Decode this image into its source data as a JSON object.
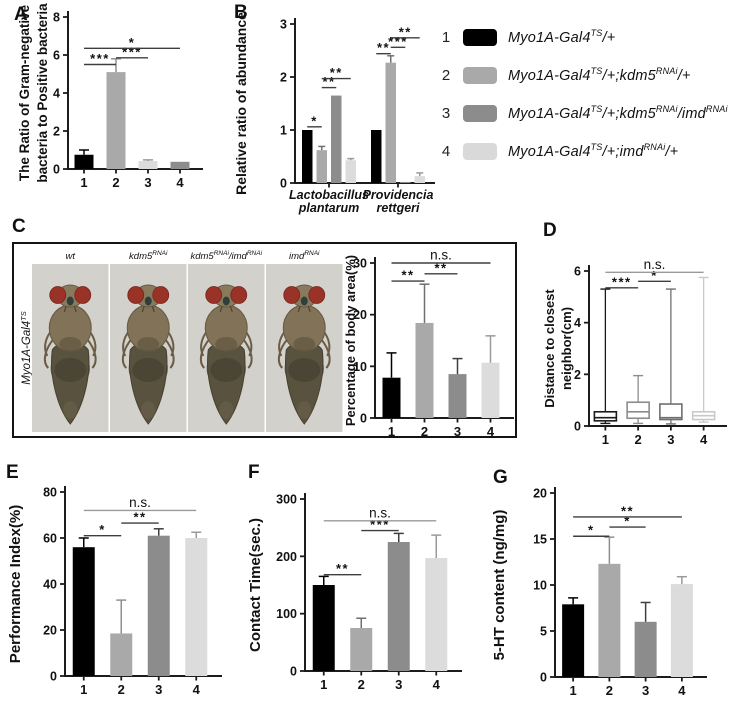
{
  "figure": {
    "background": "#ffffff",
    "panel_letters": {
      "A": "A",
      "B": "B",
      "C": "C",
      "D": "D",
      "E": "E",
      "F": "F",
      "G": "G"
    }
  },
  "legend": {
    "items": [
      {
        "num": "1",
        "color": "#000000",
        "label": "Myo1A-Gal4^{TS}/+"
      },
      {
        "num": "2",
        "color": "#a9a9a9",
        "label": "Myo1A-Gal4^{TS}/+;kdm5^{RNAi}/+"
      },
      {
        "num": "3",
        "color": "#8c8c8c",
        "label": "Myo1A-Gal4^{TS}/+;kdm5^{RNAi}/imd^{RNAi}"
      },
      {
        "num": "4",
        "color": "#d9d9d9",
        "label": "Myo1A-Gal4^{TS}/+;imd^{RNAi}/+"
      }
    ]
  },
  "panel_c": {
    "side_label": "Myo1A-Gal4^{TS}",
    "fly_labels": [
      "wt",
      "kdm5^{RNAi}",
      "kdm5^{RNAi}/imd^{RNAi}",
      "imd^{RNAi}"
    ],
    "photo_bg": "#d3d1cc",
    "fly_colors": {
      "body": "#817258",
      "abdomen": "#59523f",
      "eye": "#993227",
      "head": "#897a5e"
    }
  },
  "chart_data": [
    {
      "panel": "A",
      "type": "bar",
      "ylabel": [
        "The Ratio of Gram-negative",
        "bacteria to Positive bacteria"
      ],
      "ylim": [
        0,
        8
      ],
      "yticks": [
        0,
        2,
        4,
        6,
        8
      ],
      "categories": [
        "1",
        "2",
        "3",
        "4"
      ],
      "values": [
        0.75,
        5.1,
        0.42,
        0.38
      ],
      "errors": [
        0.25,
        0.7,
        0.06,
        0
      ],
      "colors": [
        "#000000",
        "#a9a9a9",
        "#dcdcdc",
        "#8c8c8c"
      ],
      "err_colors": [
        "#000000",
        "#8f8f8f",
        "#9a9a9a",
        "#8c8c8c"
      ],
      "sig": [
        {
          "a": 0,
          "b": 1,
          "y": 5.5,
          "label": "***"
        },
        {
          "a": 1,
          "b": 2,
          "y": 5.85,
          "label": "***"
        },
        {
          "a": 0,
          "b": 3,
          "y": 6.35,
          "label": "*"
        }
      ]
    },
    {
      "panel": "B",
      "type": "grouped_bar",
      "ylabel": [
        "Relative ratio of abundance"
      ],
      "ylim": [
        0,
        3
      ],
      "yticks": [
        0,
        1,
        2,
        3
      ],
      "group_labels": [
        [
          "Lactobacillus",
          "plantarum"
        ],
        [
          "Providencia",
          "rettgeri"
        ]
      ],
      "series_labels": [
        "1",
        "2",
        "3",
        "4"
      ],
      "values": [
        [
          1.0,
          0.62,
          1.65,
          0.43
        ],
        [
          1.0,
          2.27,
          0.02,
          0.13
        ]
      ],
      "errors": [
        [
          0,
          0.07,
          0,
          0.03
        ],
        [
          0,
          0.13,
          0,
          0.06
        ]
      ],
      "colors": [
        "#000000",
        "#a9a9a9",
        "#8c8c8c",
        "#dcdcdc"
      ],
      "err_colors": [
        "#000000",
        "#6f6f6f",
        "#6f6f6f",
        "#9a9a9a"
      ],
      "sig": [
        {
          "g": 0,
          "a": 0,
          "b": 1,
          "y": 1.06,
          "label": "*"
        },
        {
          "g": 0,
          "a": 1,
          "b": 2,
          "y": 1.8,
          "label": "**"
        },
        {
          "g": 0,
          "a": 1,
          "b": 3,
          "y": 1.97,
          "label": "**"
        },
        {
          "g": 1,
          "a": 0,
          "b": 1,
          "y": 2.44,
          "label": "**"
        },
        {
          "g": 1,
          "a": 1,
          "b": 2,
          "y": 2.56,
          "label": "***"
        },
        {
          "g": 1,
          "a": 1,
          "b": 3,
          "y": 2.74,
          "label": "**"
        }
      ]
    },
    {
      "panel": "C",
      "type": "bar",
      "ylabel": [
        "Percentage of body area(%)"
      ],
      "ylim": [
        0,
        30
      ],
      "yticks": [
        0,
        10,
        20,
        30
      ],
      "categories": [
        "1",
        "2",
        "3",
        "4"
      ],
      "values": [
        7.8,
        18.4,
        8.5,
        10.7
      ],
      "errors": [
        4.8,
        7.5,
        3.0,
        5.2
      ],
      "colors": [
        "#000000",
        "#a9a9a9",
        "#8c8c8c",
        "#dcdcdc"
      ],
      "err_colors": [
        "#000000",
        "#6f6f6f",
        "#3f3f3f",
        "#9a9a9a"
      ],
      "sig": [
        {
          "a": 0,
          "b": 1,
          "y": 26.5,
          "label": "**"
        },
        {
          "a": 1,
          "b": 2,
          "y": 27.9,
          "label": "**"
        },
        {
          "a": 0,
          "b": 3,
          "y": 30,
          "label": "n.s."
        }
      ]
    },
    {
      "panel": "D",
      "type": "box",
      "ylabel": [
        "Distance to closest",
        "neighbor(cm)"
      ],
      "ylim": [
        0,
        6
      ],
      "yticks": [
        0,
        2,
        4,
        6
      ],
      "categories": [
        "1",
        "2",
        "3",
        "4"
      ],
      "boxes": [
        {
          "lo": 0.1,
          "q1": 0.2,
          "med": 0.32,
          "q3": 0.55,
          "hi": 5.3,
          "color": "#1a1a1a"
        },
        {
          "lo": 0.1,
          "q1": 0.3,
          "med": 0.55,
          "q3": 0.92,
          "hi": 1.95,
          "color": "#8c8c8c"
        },
        {
          "lo": 0.08,
          "q1": 0.25,
          "med": 0.32,
          "q3": 0.85,
          "hi": 5.3,
          "color": "#6f6f6f"
        },
        {
          "lo": 0.15,
          "q1": 0.25,
          "med": 0.4,
          "q3": 0.55,
          "hi": 5.75,
          "color": "#c9c9c9"
        }
      ],
      "sig": [
        {
          "a": 0,
          "b": 1,
          "y": 5.35,
          "label": "***"
        },
        {
          "a": 1,
          "b": 2,
          "y": 5.6,
          "label": "*"
        },
        {
          "a": 0,
          "b": 3,
          "y": 5.95,
          "label": "n.s.",
          "color": "#9a9a9a"
        }
      ]
    },
    {
      "panel": "E",
      "type": "bar",
      "ylabel": [
        "Performance Index(%)"
      ],
      "ylim": [
        0,
        80
      ],
      "yticks": [
        0,
        20,
        40,
        60,
        80
      ],
      "categories": [
        "1",
        "2",
        "3",
        "4"
      ],
      "values": [
        56,
        18.5,
        61,
        60
      ],
      "errors": [
        4,
        14.5,
        3,
        2.5
      ],
      "colors": [
        "#000000",
        "#a9a9a9",
        "#8c8c8c",
        "#dcdcdc"
      ],
      "err_colors": [
        "#000000",
        "#8f8f8f",
        "#3f3f3f",
        "#9a9a9a"
      ],
      "sig": [
        {
          "a": 0,
          "b": 1,
          "y": 61,
          "label": "*"
        },
        {
          "a": 1,
          "b": 2,
          "y": 66.5,
          "label": "**"
        },
        {
          "a": 0,
          "b": 3,
          "y": 72,
          "label": "n.s.",
          "color": "#9a9a9a"
        }
      ]
    },
    {
      "panel": "F",
      "type": "bar",
      "ylabel": [
        "Contact Time(sec.)"
      ],
      "ylim": [
        0,
        300
      ],
      "yticks": [
        0,
        100,
        200,
        300
      ],
      "categories": [
        "1",
        "2",
        "3",
        "4"
      ],
      "values": [
        150,
        75,
        225,
        197
      ],
      "errors": [
        15,
        17,
        15,
        40
      ],
      "colors": [
        "#000000",
        "#a9a9a9",
        "#8c8c8c",
        "#dcdcdc"
      ],
      "err_colors": [
        "#000000",
        "#6f6f6f",
        "#3f3f3f",
        "#9a9a9a"
      ],
      "sig": [
        {
          "a": 0,
          "b": 1,
          "y": 168,
          "label": "**"
        },
        {
          "a": 1,
          "b": 2,
          "y": 245,
          "label": "***"
        },
        {
          "a": 0,
          "b": 3,
          "y": 262,
          "label": "n.s.",
          "color": "#9a9a9a"
        }
      ]
    },
    {
      "panel": "G",
      "type": "bar",
      "ylabel": [
        "5-HT content (ng/mg)"
      ],
      "ylim": [
        0,
        20
      ],
      "yticks": [
        0,
        5,
        10,
        15,
        20
      ],
      "categories": [
        "1",
        "2",
        "3",
        "4"
      ],
      "values": [
        7.9,
        12.3,
        6.0,
        10.1
      ],
      "errors": [
        0.7,
        2.9,
        2.1,
        0.8
      ],
      "colors": [
        "#000000",
        "#a9a9a9",
        "#8c8c8c",
        "#dcdcdc"
      ],
      "err_colors": [
        "#000000",
        "#8f8f8f",
        "#3f3f3f",
        "#9a9a9a"
      ],
      "sig": [
        {
          "a": 0,
          "b": 1,
          "y": 15.3,
          "label": "*"
        },
        {
          "a": 1,
          "b": 2,
          "y": 16.3,
          "label": "*"
        },
        {
          "a": 0,
          "b": 3,
          "y": 17.4,
          "label": "**"
        }
      ]
    }
  ]
}
